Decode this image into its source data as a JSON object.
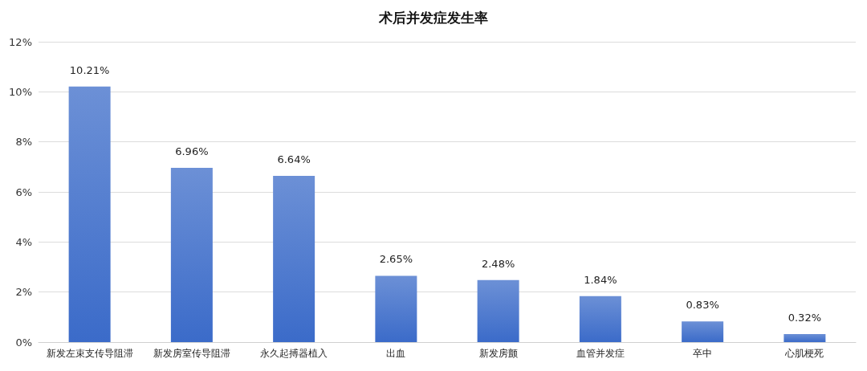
{
  "chart_data": {
    "type": "bar",
    "title": "术后并发症发生率",
    "categories": [
      "新发左束支传导阻滞",
      "新发房室传导阻滞",
      "永久起搏器植入",
      "出血",
      "新发房颤",
      "血管并发症",
      "卒中",
      "心肌梗死"
    ],
    "values": [
      10.21,
      6.96,
      6.64,
      2.65,
      2.48,
      1.84,
      0.83,
      0.32
    ],
    "value_labels": [
      "10.21%",
      "6.96%",
      "6.64%",
      "2.65%",
      "2.48%",
      "1.84%",
      "0.83%",
      "0.32%"
    ],
    "color": "#3b6bc9",
    "ylim": [
      0,
      12
    ],
    "yticks": [
      {
        "value": 0,
        "label": "0%"
      },
      {
        "value": 2,
        "label": "2%"
      },
      {
        "value": 4,
        "label": "4%"
      },
      {
        "value": 6,
        "label": "6%"
      },
      {
        "value": 8,
        "label": "8%"
      },
      {
        "value": 10,
        "label": "10%"
      },
      {
        "value": 12,
        "label": "12%"
      }
    ],
    "grid": "y"
  }
}
